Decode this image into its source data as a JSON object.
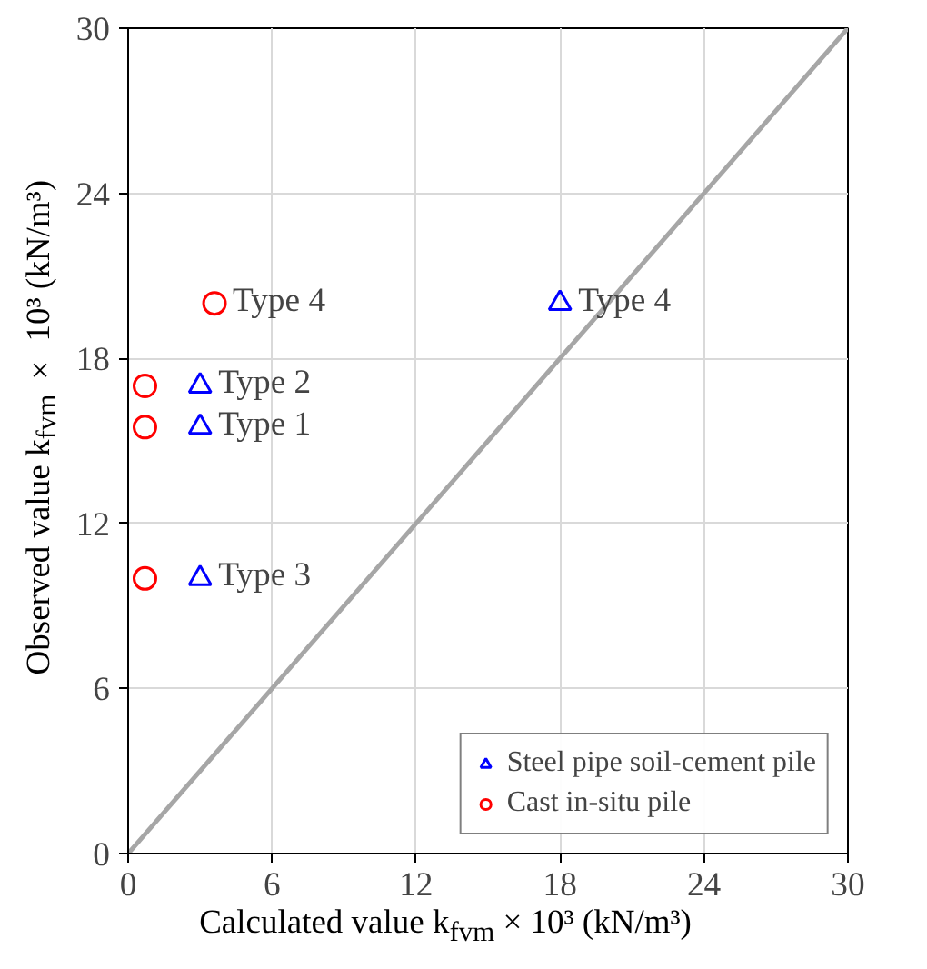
{
  "chart_data": {
    "type": "scatter",
    "xlabel": "Calculated value k$_{fvm}$ × 10³ (kN/m³)",
    "ylabel": "Observed value k$_{fvm}$ × 10³ (kN/m³)",
    "xlim": [
      0,
      30
    ],
    "ylim": [
      0,
      30
    ],
    "xticks": [
      0,
      6,
      12,
      18,
      24,
      30
    ],
    "yticks": [
      0,
      6,
      12,
      18,
      24,
      30
    ],
    "grid": true,
    "legend": "bottom right",
    "series": [
      {
        "name": "Steel pipe soil-cement pile",
        "color": "#0000ff",
        "marker": "triangle",
        "x": [
          3.0,
          3.0,
          3.0,
          18.0
        ],
        "values": [
          17.0,
          15.5,
          10.0,
          20.0
        ]
      },
      {
        "name": "Cast in-situ pile",
        "color": "#ff0000",
        "marker": "circle",
        "x": [
          0.7,
          0.7,
          0.7,
          3.6
        ],
        "values": [
          17.0,
          15.5,
          10.0,
          20.0
        ]
      },
      {
        "type": "line",
        "color": "#a6a6a6",
        "marker": "none",
        "x": [
          0,
          30
        ],
        "values": [
          0,
          30
        ]
      }
    ],
    "annotations": [
      {
        "text": "Type 4",
        "x": 3.6,
        "y": 20.0
      },
      {
        "text": "Type 4",
        "x": 18.0,
        "y": 20.0
      },
      {
        "text": "Type 2",
        "x": 3.0,
        "y": 17.0
      },
      {
        "text": "Type 1",
        "x": 3.0,
        "y": 15.5
      },
      {
        "text": "Type 3",
        "x": 3.0,
        "y": 10.0
      }
    ]
  }
}
